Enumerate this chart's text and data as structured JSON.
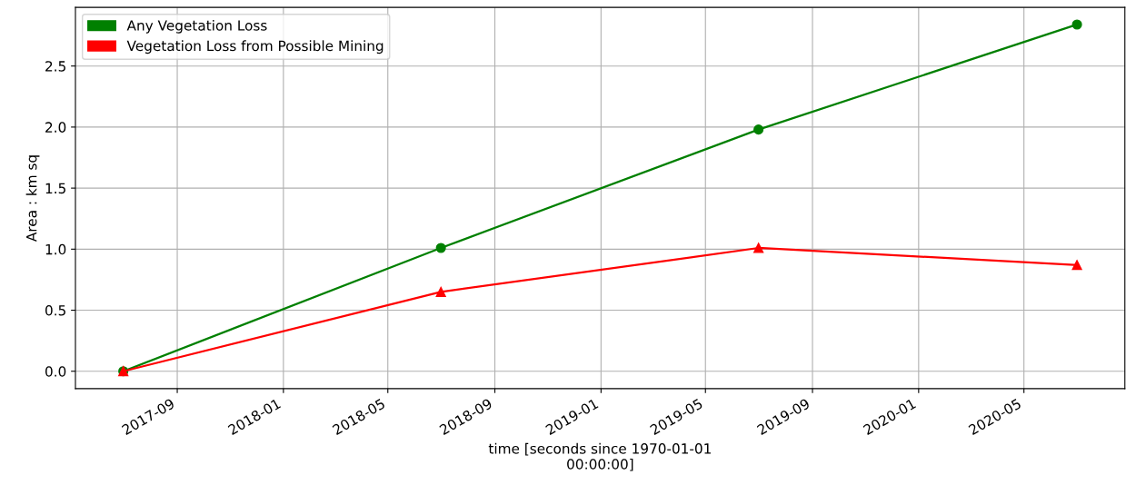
{
  "chart_data": {
    "type": "line",
    "xlabel": "time [seconds since 1970-01-01\n00:00:00]",
    "ylabel": "Area : km sq",
    "x": [
      "2017-07-01",
      "2018-07-01",
      "2019-07-01",
      "2020-07-01"
    ],
    "series": [
      {
        "name": "Any Vegetation Loss",
        "color": "#008000",
        "marker": "circle",
        "values": [
          0.0,
          1.01,
          1.98,
          2.84
        ]
      },
      {
        "name": "Vegetation Loss from Possible Mining",
        "color": "#ff0000",
        "marker": "triangle",
        "values": [
          0.0,
          0.65,
          1.01,
          0.87
        ]
      }
    ],
    "xlim": [
      "2017-05-07",
      "2020-08-25"
    ],
    "xticks": [
      {
        "value": "2017-09-01",
        "label": "2017-09"
      },
      {
        "value": "2018-01-01",
        "label": "2018-01"
      },
      {
        "value": "2018-05-01",
        "label": "2018-05"
      },
      {
        "value": "2018-09-01",
        "label": "2018-09"
      },
      {
        "value": "2019-01-01",
        "label": "2019-01"
      },
      {
        "value": "2019-05-01",
        "label": "2019-05"
      },
      {
        "value": "2019-09-01",
        "label": "2019-09"
      },
      {
        "value": "2020-01-01",
        "label": "2020-01"
      },
      {
        "value": "2020-05-01",
        "label": "2020-05"
      }
    ],
    "ylim": [
      -0.142,
      2.98
    ],
    "yticks": [
      {
        "value": 0,
        "label": "0.0"
      },
      {
        "value": 0.5,
        "label": "0.5"
      },
      {
        "value": 1,
        "label": "1.0"
      },
      {
        "value": 1.5,
        "label": "1.5"
      },
      {
        "value": 2,
        "label": "2.0"
      },
      {
        "value": 2.5,
        "label": "2.5"
      }
    ],
    "grid": true,
    "legend": "top left"
  }
}
